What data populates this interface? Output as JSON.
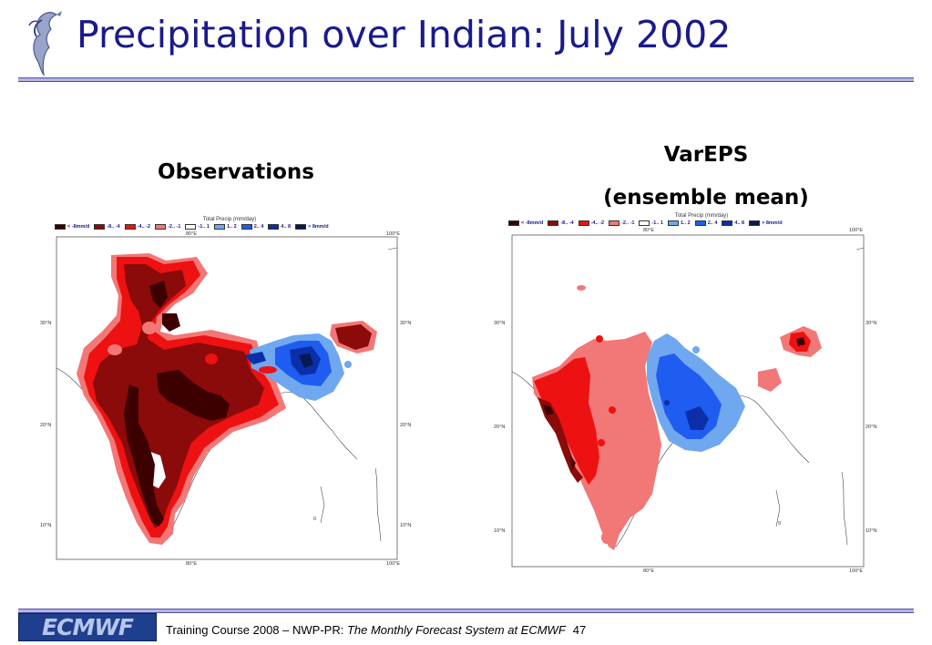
{
  "slide": {
    "title": "Precipitation over Indian: July 2002",
    "page_number": "47"
  },
  "headings": {
    "observations": "Observations",
    "vareps_line1": "VarEPS",
    "vareps_line2": "(ensemble mean)"
  },
  "legend": {
    "title": "Total Precip (mm/day)",
    "items": [
      {
        "label": "< -8mm/d",
        "color": "#3d0000"
      },
      {
        "label": "-8.. -4",
        "color": "#8b0a0a"
      },
      {
        "label": "-4.. -2",
        "color": "#ee1111"
      },
      {
        "label": "-2.. -1",
        "color": "#f27777"
      },
      {
        "label": "-1.. 1",
        "color": "#ffffff"
      },
      {
        "label": "1.. 2",
        "color": "#6fa8ef"
      },
      {
        "label": "2.. 4",
        "color": "#1f5cf0"
      },
      {
        "label": "4.. 8",
        "color": "#0b2fa8"
      },
      {
        "label": "> 8mm/d",
        "color": "#071a52"
      }
    ]
  },
  "axes": {
    "lon_80": "80°E",
    "lon_100": "100°E",
    "lat_30": "30°N",
    "lat_20": "20°N",
    "lat_10": "10°N",
    "zero_label": "0"
  },
  "footer": {
    "logo_text": "ECMWF",
    "course": "Training Course 2008 – NWP-PR: ",
    "course_italic": "The Monthly Forecast System at ECMWF"
  },
  "colors": {
    "title": "#1a1a8c",
    "rule": "#b4b4e8",
    "logo_bg": "#1e3f8e"
  }
}
